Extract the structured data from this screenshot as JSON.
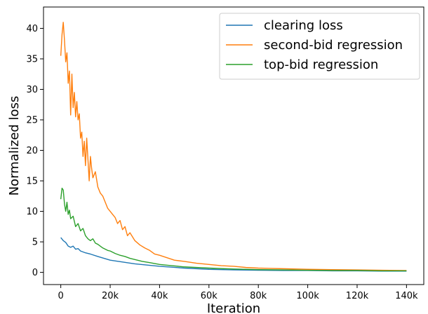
{
  "chart_data": {
    "type": "line",
    "title": "",
    "xlabel": "Iteration",
    "ylabel": "Normalized loss",
    "xlim": [
      -7000,
      147000
    ],
    "ylim": [
      -2,
      43.5
    ],
    "grid": false,
    "legend_position": "top-right",
    "x_ticks": [
      0,
      20000,
      40000,
      60000,
      80000,
      100000,
      120000,
      140000
    ],
    "x_tick_labels": [
      "0",
      "20k",
      "40k",
      "60k",
      "80k",
      "100k",
      "120k",
      "140k"
    ],
    "y_ticks": [
      0,
      5,
      10,
      15,
      20,
      25,
      30,
      35,
      40
    ],
    "y_tick_labels": [
      "0",
      "5",
      "10",
      "15",
      "20",
      "25",
      "30",
      "35",
      "40"
    ],
    "series": [
      {
        "name": "clearing loss",
        "color": "#1f77b4",
        "x": [
          0,
          1000,
          2000,
          3000,
          4000,
          5000,
          6000,
          7000,
          8000,
          10000,
          12000,
          15000,
          20000,
          25000,
          30000,
          35000,
          40000,
          50000,
          60000,
          70000,
          80000,
          90000,
          100000,
          110000,
          120000,
          130000,
          140000
        ],
        "y": [
          5.7,
          5.2,
          4.9,
          4.3,
          4.1,
          4.3,
          3.8,
          3.9,
          3.5,
          3.2,
          3.0,
          2.6,
          2.0,
          1.7,
          1.4,
          1.2,
          1.0,
          0.7,
          0.5,
          0.4,
          0.35,
          0.3,
          0.3,
          0.25,
          0.25,
          0.2,
          0.2
        ]
      },
      {
        "name": "second-bid regression",
        "color": "#ff7f0e",
        "x": [
          0,
          500,
          1000,
          1500,
          2000,
          2500,
          3000,
          3500,
          4000,
          4500,
          5000,
          5500,
          6000,
          6500,
          7000,
          7500,
          8000,
          8500,
          9000,
          9500,
          10000,
          10500,
          11000,
          11500,
          12000,
          12500,
          13000,
          14000,
          15000,
          16000,
          17000,
          18000,
          19000,
          20000,
          21000,
          22000,
          23000,
          24000,
          25000,
          26000,
          27000,
          28000,
          30000,
          32000,
          34000,
          36000,
          38000,
          40000,
          43000,
          46000,
          50000,
          55000,
          60000,
          65000,
          70000,
          75000,
          80000,
          90000,
          100000,
          110000,
          120000,
          130000,
          140000
        ],
        "y": [
          35.5,
          39.0,
          41.0,
          38.0,
          34.5,
          36.0,
          31.0,
          33.0,
          25.8,
          32.5,
          27.0,
          29.5,
          25.5,
          28.0,
          25.0,
          26.0,
          22.0,
          23.0,
          19.0,
          21.5,
          17.5,
          22.0,
          18.5,
          15.0,
          19.0,
          17.0,
          15.5,
          16.5,
          14.0,
          13.0,
          12.5,
          11.5,
          10.5,
          10.0,
          9.5,
          9.0,
          8.0,
          8.5,
          7.0,
          7.5,
          6.0,
          6.5,
          5.2,
          4.5,
          4.0,
          3.6,
          3.0,
          2.8,
          2.4,
          2.0,
          1.8,
          1.5,
          1.3,
          1.1,
          1.0,
          0.8,
          0.7,
          0.6,
          0.5,
          0.45,
          0.4,
          0.35,
          0.3
        ]
      },
      {
        "name": "top-bid regression",
        "color": "#2ca02c",
        "x": [
          0,
          500,
          1000,
          1500,
          2000,
          2500,
          3000,
          3500,
          4000,
          5000,
          6000,
          7000,
          8000,
          9000,
          10000,
          11000,
          12000,
          13000,
          14000,
          15000,
          16000,
          17000,
          18000,
          19000,
          20000,
          22000,
          24000,
          26000,
          28000,
          30000,
          33000,
          36000,
          40000,
          45000,
          50000,
          55000,
          60000,
          70000,
          80000,
          90000,
          100000,
          110000,
          120000,
          130000,
          140000
        ],
        "y": [
          12.0,
          13.8,
          13.5,
          11.2,
          10.0,
          11.5,
          9.5,
          10.2,
          8.8,
          9.2,
          7.5,
          8.0,
          6.8,
          7.2,
          6.0,
          5.5,
          5.2,
          5.5,
          4.8,
          4.6,
          4.3,
          4.0,
          3.8,
          3.6,
          3.5,
          3.1,
          2.8,
          2.6,
          2.3,
          2.1,
          1.8,
          1.6,
          1.3,
          1.1,
          0.9,
          0.8,
          0.7,
          0.55,
          0.45,
          0.4,
          0.35,
          0.3,
          0.3,
          0.25,
          0.25
        ]
      }
    ]
  }
}
